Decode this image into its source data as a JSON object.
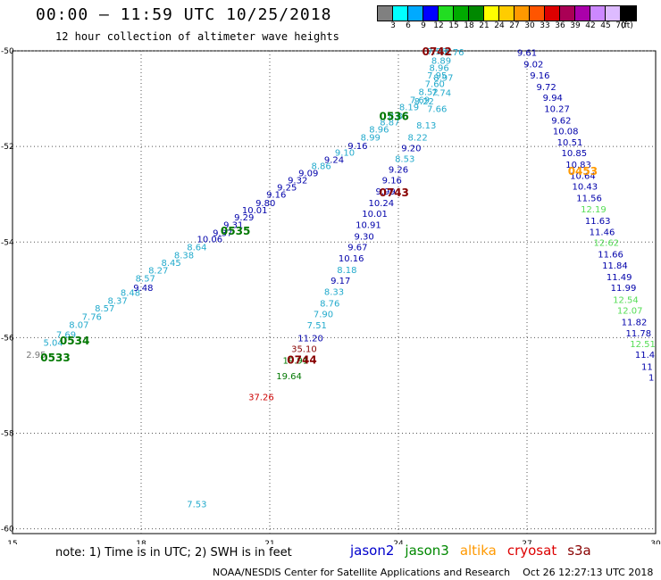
{
  "header": {
    "title": "00:00 – 11:59 UTC 10/25/2018",
    "subtitle": "12 hour collection of altimeter wave heights"
  },
  "colorbar": {
    "swatches": [
      "#808080",
      "#00ffff",
      "#00aaff",
      "#0000ff",
      "#22dd22",
      "#00aa00",
      "#008800",
      "#ffff00",
      "#ffcc00",
      "#ff9900",
      "#ff5500",
      "#dd0000",
      "#aa0055",
      "#aa00aa",
      "#cc88ff",
      "#ddbbff",
      "#000000"
    ],
    "labels": [
      "3",
      "6",
      "9",
      "12",
      "15",
      "18",
      "21",
      "24",
      "27",
      "30",
      "33",
      "36",
      "39",
      "42",
      "45",
      "70",
      "(ft)"
    ]
  },
  "axes": {
    "x_ticks": [
      "15",
      "18",
      "21",
      "24",
      "27",
      "30"
    ],
    "y_ticks": [
      "-50",
      "-52",
      "-54",
      "-56",
      "-58",
      "-60"
    ]
  },
  "colors": {
    "jason2": "#0000aa",
    "jason3": "#007700",
    "altika": "#ff9900",
    "cryosat": "#cc0000",
    "s3a": "#880000",
    "cyan": "#22aacc",
    "lightgreen": "#55dd55",
    "gray": "#777777"
  },
  "chart_data": {
    "type": "scatter",
    "title": "00:00 – 11:59 UTC 10/25/2018",
    "subtitle": "12 hour collection of altimeter wave heights",
    "units": "SWH in feet",
    "xlim": [
      15,
      30
    ],
    "ylim": [
      -60.1,
      -50
    ],
    "x_ticks": [
      15,
      18,
      21,
      24,
      27,
      30
    ],
    "y_ticks": [
      -50,
      -52,
      -54,
      -56,
      -58,
      -60
    ],
    "grid": true,
    "track_labels": [
      {
        "text": "0742",
        "x": 24.9,
        "y": -50.0,
        "color": "s3a"
      },
      {
        "text": "0536",
        "x": 23.9,
        "y": -51.35,
        "color": "jason3"
      },
      {
        "text": "0743",
        "x": 23.9,
        "y": -52.95,
        "color": "s3a"
      },
      {
        "text": "0453",
        "x": 28.3,
        "y": -52.5,
        "color": "altika"
      },
      {
        "text": "0535",
        "x": 20.2,
        "y": -53.75,
        "color": "jason3"
      },
      {
        "text": "0534",
        "x": 16.45,
        "y": -56.05,
        "color": "jason3"
      },
      {
        "text": "0533",
        "x": 16.0,
        "y": -56.4,
        "color": "jason3"
      },
      {
        "text": "0744",
        "x": 21.75,
        "y": -56.45,
        "color": "s3a"
      }
    ],
    "points": [
      {
        "v": "2.95",
        "x": 15.55,
        "y": -56.35,
        "c": "gray"
      },
      {
        "v": "5.04",
        "x": 15.95,
        "y": -56.1,
        "c": "cyan"
      },
      {
        "v": "7.69",
        "x": 16.25,
        "y": -55.93,
        "c": "cyan"
      },
      {
        "v": "8.07",
        "x": 16.55,
        "y": -55.72,
        "c": "cyan"
      },
      {
        "v": "7.76",
        "x": 16.85,
        "y": -55.55,
        "c": "cyan"
      },
      {
        "v": "8.57",
        "x": 17.15,
        "y": -55.38,
        "c": "cyan"
      },
      {
        "v": "8.37",
        "x": 17.45,
        "y": -55.22,
        "c": "cyan"
      },
      {
        "v": "8.48",
        "x": 17.75,
        "y": -55.05,
        "c": "cyan"
      },
      {
        "v": "9.48",
        "x": 18.05,
        "y": -54.95,
        "c": "jason2"
      },
      {
        "v": "8.57",
        "x": 18.1,
        "y": -54.75,
        "c": "cyan"
      },
      {
        "v": "8.27",
        "x": 18.4,
        "y": -54.58,
        "c": "cyan"
      },
      {
        "v": "8.45",
        "x": 18.7,
        "y": -54.42,
        "c": "cyan"
      },
      {
        "v": "8.38",
        "x": 19.0,
        "y": -54.27,
        "c": "cyan"
      },
      {
        "v": "8.64",
        "x": 19.3,
        "y": -54.1,
        "c": "cyan"
      },
      {
        "v": "10.06",
        "x": 19.6,
        "y": -53.93,
        "c": "jason2"
      },
      {
        "v": "9.37",
        "x": 19.9,
        "y": -53.8,
        "c": "jason2"
      },
      {
        "v": "9.31",
        "x": 20.15,
        "y": -53.63,
        "c": "jason2"
      },
      {
        "v": "9.29",
        "x": 20.4,
        "y": -53.47,
        "c": "jason2"
      },
      {
        "v": "10.01",
        "x": 20.65,
        "y": -53.32,
        "c": "jason2"
      },
      {
        "v": "9.80",
        "x": 20.9,
        "y": -53.17,
        "c": "jason2"
      },
      {
        "v": "9.16",
        "x": 21.15,
        "y": -53.0,
        "c": "jason2"
      },
      {
        "v": "9.25",
        "x": 21.4,
        "y": -52.85,
        "c": "jason2"
      },
      {
        "v": "9.32",
        "x": 21.65,
        "y": -52.7,
        "c": "jason2"
      },
      {
        "v": "9.09",
        "x": 21.9,
        "y": -52.55,
        "c": "jason2"
      },
      {
        "v": "8.86",
        "x": 22.2,
        "y": -52.4,
        "c": "cyan"
      },
      {
        "v": "9.24",
        "x": 22.5,
        "y": -52.27,
        "c": "jason2"
      },
      {
        "v": "9.10",
        "x": 22.75,
        "y": -52.12,
        "c": "cyan"
      },
      {
        "v": "9.16",
        "x": 23.05,
        "y": -51.98,
        "c": "jason2"
      },
      {
        "v": "8.99",
        "x": 23.35,
        "y": -51.8,
        "c": "cyan"
      },
      {
        "v": "8.96",
        "x": 23.55,
        "y": -51.63,
        "c": "cyan"
      },
      {
        "v": "8.87",
        "x": 23.8,
        "y": -51.48,
        "c": "cyan"
      },
      {
        "v": "8.86",
        "x": 24.0,
        "y": -51.35,
        "c": "cyan"
      },
      {
        "v": "8.19",
        "x": 24.25,
        "y": -51.17,
        "c": "cyan"
      },
      {
        "v": "7.69",
        "x": 24.5,
        "y": -51.02,
        "c": "cyan"
      },
      {
        "v": "8.52",
        "x": 24.7,
        "y": -50.85,
        "c": "cyan"
      },
      {
        "v": "7.60",
        "x": 24.85,
        "y": -50.68,
        "c": "cyan"
      },
      {
        "v": "7.95",
        "x": 24.9,
        "y": -50.5,
        "c": "cyan"
      },
      {
        "v": "8.96",
        "x": 24.95,
        "y": -50.35,
        "c": "cyan"
      },
      {
        "v": "8.89",
        "x": 25.0,
        "y": -50.2,
        "c": "cyan"
      },
      {
        "v": "7.56",
        "x": 24.9,
        "y": -50.0,
        "c": "cyan"
      },
      {
        "v": "9.76",
        "x": 25.3,
        "y": -50.02,
        "c": "cyan"
      },
      {
        "v": "8.97",
        "x": 25.05,
        "y": -50.55,
        "c": "cyan"
      },
      {
        "v": "7.74",
        "x": 25.0,
        "y": -50.87,
        "c": "cyan"
      },
      {
        "v": "8.22",
        "x": 24.6,
        "y": -51.05,
        "c": "cyan"
      },
      {
        "v": "7.66",
        "x": 24.9,
        "y": -51.2,
        "c": "cyan"
      },
      {
        "v": "8.13",
        "x": 24.65,
        "y": -51.55,
        "c": "cyan"
      },
      {
        "v": "8.22",
        "x": 24.45,
        "y": -51.8,
        "c": "cyan"
      },
      {
        "v": "9.20",
        "x": 24.3,
        "y": -52.03,
        "c": "jason2"
      },
      {
        "v": "8.53",
        "x": 24.15,
        "y": -52.25,
        "c": "cyan"
      },
      {
        "v": "9.26",
        "x": 24.0,
        "y": -52.47,
        "c": "jason2"
      },
      {
        "v": "9.16",
        "x": 23.85,
        "y": -52.7,
        "c": "jason2"
      },
      {
        "v": "9.99",
        "x": 23.7,
        "y": -52.93,
        "c": "jason2"
      },
      {
        "v": "10.24",
        "x": 23.6,
        "y": -53.17,
        "c": "jason2"
      },
      {
        "v": "10.01",
        "x": 23.45,
        "y": -53.4,
        "c": "jason2"
      },
      {
        "v": "10.91",
        "x": 23.3,
        "y": -53.63,
        "c": "jason2"
      },
      {
        "v": "9.30",
        "x": 23.2,
        "y": -53.87,
        "c": "jason2"
      },
      {
        "v": "9.67",
        "x": 23.05,
        "y": -54.1,
        "c": "jason2"
      },
      {
        "v": "10.16",
        "x": 22.9,
        "y": -54.33,
        "c": "jason2"
      },
      {
        "v": "8.18",
        "x": 22.8,
        "y": -54.57,
        "c": "cyan"
      },
      {
        "v": "9.17",
        "x": 22.65,
        "y": -54.8,
        "c": "jason2"
      },
      {
        "v": "8.33",
        "x": 22.5,
        "y": -55.03,
        "c": "cyan"
      },
      {
        "v": "8.76",
        "x": 22.4,
        "y": -55.27,
        "c": "cyan"
      },
      {
        "v": "7.90",
        "x": 22.25,
        "y": -55.5,
        "c": "cyan"
      },
      {
        "v": "7.51",
        "x": 22.1,
        "y": -55.73,
        "c": "cyan"
      },
      {
        "v": "11.20",
        "x": 21.95,
        "y": -56.0,
        "c": "jason2"
      },
      {
        "v": "35.10",
        "x": 21.8,
        "y": -56.23,
        "c": "s3a"
      },
      {
        "v": "19.91",
        "x": 21.6,
        "y": -56.47,
        "c": "jason3"
      },
      {
        "v": "19.64",
        "x": 21.45,
        "y": -56.8,
        "c": "jason3"
      },
      {
        "v": "37.26",
        "x": 20.8,
        "y": -57.23,
        "c": "cryosat"
      },
      {
        "v": "7.53",
        "x": 19.3,
        "y": -59.47,
        "c": "cyan"
      },
      {
        "v": "9.61",
        "x": 27.0,
        "y": -50.03,
        "c": "jason2"
      },
      {
        "v": "9.02",
        "x": 27.15,
        "y": -50.27,
        "c": "jason2"
      },
      {
        "v": "9.16",
        "x": 27.3,
        "y": -50.5,
        "c": "jason2"
      },
      {
        "v": "9.72",
        "x": 27.45,
        "y": -50.75,
        "c": "jason2"
      },
      {
        "v": "9.94",
        "x": 27.6,
        "y": -50.97,
        "c": "jason2"
      },
      {
        "v": "10.27",
        "x": 27.7,
        "y": -51.2,
        "c": "jason2"
      },
      {
        "v": "9.62",
        "x": 27.8,
        "y": -51.45,
        "c": "jason2"
      },
      {
        "v": "10.08",
        "x": 27.9,
        "y": -51.67,
        "c": "jason2"
      },
      {
        "v": "10.51",
        "x": 28.0,
        "y": -51.9,
        "c": "jason2"
      },
      {
        "v": "10.85",
        "x": 28.1,
        "y": -52.13,
        "c": "jason2"
      },
      {
        "v": "10.83",
        "x": 28.2,
        "y": -52.37,
        "c": "jason2"
      },
      {
        "v": "10.64",
        "x": 28.3,
        "y": -52.6,
        "c": "jason2"
      },
      {
        "v": "10.43",
        "x": 28.35,
        "y": -52.83,
        "c": "jason2"
      },
      {
        "v": "11.56",
        "x": 28.45,
        "y": -53.07,
        "c": "jason2"
      },
      {
        "v": "12.19",
        "x": 28.55,
        "y": -53.3,
        "c": "lightgreen"
      },
      {
        "v": "11.63",
        "x": 28.65,
        "y": -53.55,
        "c": "jason2"
      },
      {
        "v": "11.46",
        "x": 28.75,
        "y": -53.78,
        "c": "jason2"
      },
      {
        "v": "12.62",
        "x": 28.85,
        "y": -54.0,
        "c": "lightgreen"
      },
      {
        "v": "11.66",
        "x": 28.95,
        "y": -54.25,
        "c": "jason2"
      },
      {
        "v": "11.84",
        "x": 29.05,
        "y": -54.48,
        "c": "jason2"
      },
      {
        "v": "11.49",
        "x": 29.15,
        "y": -54.72,
        "c": "jason2"
      },
      {
        "v": "11.99",
        "x": 29.25,
        "y": -54.95,
        "c": "jason2"
      },
      {
        "v": "12.54",
        "x": 29.3,
        "y": -55.2,
        "c": "lightgreen"
      },
      {
        "v": "12.07",
        "x": 29.4,
        "y": -55.42,
        "c": "lightgreen"
      },
      {
        "v": "11.82",
        "x": 29.5,
        "y": -55.67,
        "c": "jason2"
      },
      {
        "v": "11.78",
        "x": 29.6,
        "y": -55.9,
        "c": "jason2"
      },
      {
        "v": "12.51",
        "x": 29.7,
        "y": -56.12,
        "c": "lightgreen"
      },
      {
        "v": "11.4",
        "x": 29.75,
        "y": -56.35,
        "c": "jason2"
      },
      {
        "v": "11",
        "x": 29.8,
        "y": -56.6,
        "c": "jason2"
      },
      {
        "v": "1",
        "x": 29.9,
        "y": -56.82,
        "c": "jason2"
      }
    ]
  },
  "note": "note: 1) Time is in UTC; 2) SWH is in feet",
  "legend": [
    {
      "label": "jason2",
      "color": "#0000cc"
    },
    {
      "label": "jason3",
      "color": "#008800"
    },
    {
      "label": "altika",
      "color": "#ff9900"
    },
    {
      "label": "cryosat",
      "color": "#dd0000"
    },
    {
      "label": "s3a",
      "color": "#880000"
    }
  ],
  "footer": {
    "org": "NOAA/NESDIS Center for Satellite Applications and Research",
    "timestamp": "Oct 26 12:27:13 UTC 2018"
  }
}
